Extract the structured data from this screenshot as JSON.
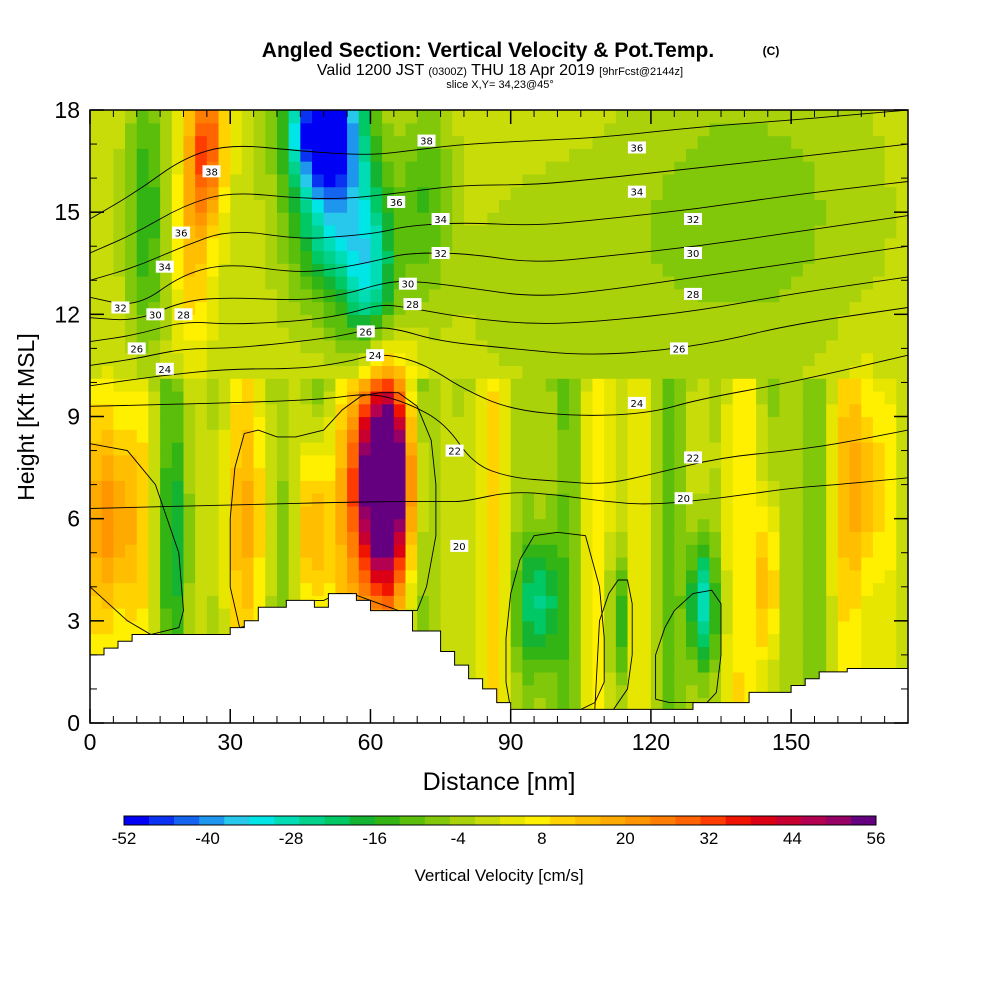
{
  "chart_data": {
    "type": "heatmap",
    "title": "Angled Section: Vertical Velocity & Pot.Temp.",
    "title_suffix": "(C)",
    "subtitle_parts": [
      "Valid 1200 JST",
      "(0300Z)",
      "THU 18 Apr 2019",
      "[9hrFcst@2144z]"
    ],
    "subtitle2": "slice X,Y= 34,23@45°",
    "xlabel": "Distance [nm]",
    "ylabel": "Height [Kft MSL]",
    "xlim": [
      0,
      175
    ],
    "ylim": [
      0,
      18
    ],
    "x_ticks": [
      0,
      30,
      60,
      90,
      120,
      150
    ],
    "y_ticks": [
      0,
      3,
      6,
      9,
      12,
      15,
      18
    ],
    "colorbar": {
      "label": "Vertical Velocity [cm/s]",
      "min": -52,
      "max": 56,
      "step": 4,
      "tick_labels": [
        -52,
        -40,
        -28,
        -16,
        -4,
        8,
        20,
        32,
        44,
        56
      ],
      "colors": [
        "#0000f5",
        "#0a32f2",
        "#1464f0",
        "#1e96ee",
        "#28c8ec",
        "#00e6e6",
        "#00dcb4",
        "#00d28c",
        "#00c864",
        "#14b432",
        "#32b414",
        "#5abe0a",
        "#82c80a",
        "#aad20a",
        "#c8dc0a",
        "#e6e600",
        "#fff000",
        "#ffd200",
        "#ffbe00",
        "#ffaa00",
        "#ff9600",
        "#ff7d00",
        "#ff6400",
        "#ff3c00",
        "#f01400",
        "#dc0014",
        "#c80032",
        "#b40050",
        "#960064",
        "#640080"
      ]
    },
    "field": {
      "description_values": "vertical velocity in cm/s",
      "background": 0,
      "features": [
        {
          "x": 25,
          "y": 17,
          "w": 4,
          "h": 2.2,
          "value": 30
        },
        {
          "x": 22,
          "y": 14,
          "w": 4,
          "h": 3,
          "value": 14
        },
        {
          "x": 12,
          "y": 15,
          "w": 4,
          "h": 4,
          "value": -16
        },
        {
          "x": 50,
          "y": 17.5,
          "w": 7,
          "h": 1.6,
          "value": -48
        },
        {
          "x": 52,
          "y": 15.5,
          "w": 9,
          "h": 3,
          "value": -32
        },
        {
          "x": 60,
          "y": 13,
          "w": 6,
          "h": 2.5,
          "value": -26
        },
        {
          "x": 72,
          "y": 15.5,
          "w": 5,
          "h": 3,
          "value": -12
        },
        {
          "x": 63,
          "y": 7.3,
          "w": 5,
          "h": 2.5,
          "value": 56
        },
        {
          "x": 62,
          "y": 6.5,
          "w": 7,
          "h": 4,
          "value": 32
        },
        {
          "x": 48,
          "y": 5.5,
          "w": 4,
          "h": 3,
          "value": 24
        },
        {
          "x": 5,
          "y": 6,
          "w": 6,
          "h": 3,
          "value": 18
        },
        {
          "x": 35,
          "y": 6,
          "w": 8,
          "h": 3,
          "value": 8
        },
        {
          "x": 18,
          "y": 5.5,
          "w": 3,
          "h": 3,
          "value": -12
        },
        {
          "x": 42,
          "y": 5.5,
          "w": 3,
          "h": 3,
          "value": -12
        },
        {
          "x": 96,
          "y": 3.5,
          "w": 5,
          "h": 2,
          "value": -22
        },
        {
          "x": 113,
          "y": 3,
          "w": 2,
          "h": 2,
          "value": -20
        },
        {
          "x": 131,
          "y": 3.5,
          "w": 3,
          "h": 2,
          "value": -30
        },
        {
          "x": 145,
          "y": 4,
          "w": 2,
          "h": 2.5,
          "value": 22
        },
        {
          "x": 165,
          "y": 7,
          "w": 5,
          "h": 3,
          "value": 14
        },
        {
          "x": 140,
          "y": 15,
          "w": 25,
          "h": 4,
          "value": -8
        },
        {
          "x": 100,
          "y": 13,
          "w": 20,
          "h": 3,
          "value": -4
        }
      ]
    },
    "terrain_polygon": {
      "x": [
        0,
        0,
        3,
        3,
        6,
        6,
        9,
        9,
        12,
        12,
        30,
        30,
        33,
        33,
        36,
        36,
        42,
        42,
        48,
        48,
        51,
        51,
        57,
        57,
        60,
        60,
        69,
        69,
        75,
        75,
        78,
        78,
        81,
        81,
        84,
        84,
        87,
        87,
        90,
        90,
        93,
        93,
        105,
        105,
        108,
        108,
        111,
        111,
        114,
        114,
        117,
        117,
        120,
        120,
        123,
        123,
        126,
        126,
        129,
        129,
        132,
        132,
        135,
        135,
        138,
        138,
        141,
        141,
        144,
        144,
        147,
        147,
        150,
        150,
        153,
        153,
        156,
        156,
        159,
        159,
        162,
        162,
        165,
        165,
        175,
        175
      ],
      "y": [
        0,
        2,
        2,
        2.2,
        2.2,
        2.4,
        2.4,
        2.6,
        2.6,
        2.6,
        2.6,
        2.8,
        2.8,
        3,
        3,
        3.4,
        3.4,
        3.6,
        3.6,
        3.4,
        3.4,
        3.8,
        3.8,
        3.6,
        3.6,
        3.3,
        3.3,
        2.7,
        2.7,
        2.1,
        2.1,
        1.7,
        1.7,
        1.3,
        1.3,
        1.0,
        1.0,
        0.6,
        0.6,
        0.4,
        0.4,
        0.4,
        0.4,
        0.4,
        0.4,
        0.4,
        0.4,
        0.4,
        0.4,
        0.4,
        0.4,
        0.4,
        0.4,
        0.4,
        0.4,
        0.4,
        0.4,
        0.4,
        0.4,
        0.6,
        0.6,
        0.6,
        0.6,
        0.6,
        0.6,
        0.6,
        0.6,
        0.9,
        0.9,
        0.9,
        0.9,
        0.9,
        0.9,
        1.1,
        1.1,
        1.3,
        1.3,
        1.5,
        1.5,
        1.5,
        1.5,
        1.6,
        1.6,
        1.6,
        1.6,
        0
      ]
    },
    "isentropes": [
      {
        "theta": 20,
        "x": [
          0,
          30,
          60,
          76,
          80,
          90,
          100,
          110,
          120,
          135,
          150,
          160,
          175
        ],
        "y": [
          6.3,
          6.4,
          6.5,
          6.5,
          6.5,
          6.8,
          6.7,
          6.5,
          6.4,
          6.6,
          6.9,
          7.0,
          7.2
        ]
      },
      {
        "theta": 22,
        "x": [
          0,
          30,
          50,
          60,
          68,
          76,
          82,
          90,
          100,
          110,
          120,
          135,
          150,
          160,
          175
        ],
        "y": [
          9.3,
          9.4,
          9.5,
          9.7,
          9.4,
          8.8,
          7.6,
          7.2,
          7.1,
          7.0,
          7.3,
          7.8,
          8.0,
          8.2,
          8.6
        ]
      },
      {
        "theta": 24,
        "x": [
          0,
          15,
          30,
          45,
          55,
          60,
          65,
          72,
          80,
          90,
          105,
          120,
          130,
          150,
          175
        ],
        "y": [
          9.9,
          10.2,
          10.4,
          10.4,
          10.6,
          10.8,
          10.8,
          10.5,
          9.8,
          9.2,
          9.0,
          9.1,
          9.5,
          10.0,
          10.8
        ]
      },
      {
        "theta": 26,
        "x": [
          0,
          10,
          20,
          30,
          45,
          55,
          60,
          65,
          75,
          90,
          105,
          120,
          135,
          150,
          175
        ],
        "y": [
          10.5,
          10.7,
          11.0,
          11.0,
          11.2,
          11.4,
          11.6,
          11.6,
          11.2,
          11.0,
          10.8,
          10.9,
          11.2,
          11.7,
          12.2
        ]
      },
      {
        "theta": 28,
        "x": [
          0,
          10,
          20,
          30,
          45,
          55,
          62,
          68,
          80,
          95,
          110,
          130,
          150,
          175
        ],
        "y": [
          11.2,
          11.4,
          11.8,
          11.7,
          11.8,
          12.0,
          12.3,
          12.2,
          11.9,
          11.7,
          11.8,
          12.1,
          12.6,
          13.1
        ]
      },
      {
        "theta": 30,
        "x": [
          0,
          10,
          20,
          30,
          45,
          55,
          62,
          68,
          80,
          95,
          110,
          130,
          150,
          175
        ],
        "y": [
          11.9,
          11.8,
          12.4,
          12.5,
          12.4,
          12.6,
          12.9,
          13.0,
          12.8,
          12.5,
          12.7,
          13.1,
          13.5,
          14.0
        ]
      },
      {
        "theta": 32,
        "x": [
          0,
          10,
          20,
          30,
          45,
          55,
          62,
          68,
          80,
          95,
          110,
          130,
          150,
          175
        ],
        "y": [
          12.5,
          12.2,
          13.2,
          13.5,
          13.2,
          13.4,
          13.6,
          13.8,
          13.8,
          13.5,
          13.7,
          14.0,
          14.4,
          14.9
        ]
      },
      {
        "theta": 34,
        "x": [
          0,
          10,
          20,
          30,
          45,
          55,
          62,
          68,
          80,
          95,
          110,
          130,
          150,
          175
        ],
        "y": [
          13.0,
          13.4,
          14.0,
          14.5,
          14.2,
          14.3,
          14.4,
          14.6,
          14.7,
          14.6,
          14.8,
          15.1,
          15.5,
          15.9
        ]
      },
      {
        "theta": 36,
        "x": [
          0,
          10,
          20,
          30,
          45,
          55,
          62,
          68,
          80,
          95,
          110,
          130,
          150,
          175
        ],
        "y": [
          13.8,
          14.4,
          15.2,
          15.6,
          15.4,
          15.4,
          15.5,
          15.6,
          15.8,
          15.8,
          16.0,
          16.3,
          16.6,
          17.0
        ]
      },
      {
        "theta": 38,
        "x": [
          0,
          10,
          20,
          30,
          45,
          55,
          62,
          68,
          80,
          95,
          110,
          130,
          150,
          175
        ],
        "y": [
          14.8,
          15.6,
          16.6,
          17.0,
          16.8,
          16.7,
          16.7,
          16.8,
          17.0,
          17.1,
          17.2,
          17.5,
          17.7,
          18.0
        ]
      }
    ],
    "contour_labels": [
      {
        "text": "38",
        "x": 26,
        "y": 16.2
      },
      {
        "text": "36",
        "x": 19.5,
        "y": 14.4
      },
      {
        "text": "34",
        "x": 16,
        "y": 13.4
      },
      {
        "text": "32",
        "x": 6.5,
        "y": 12.2
      },
      {
        "text": "30",
        "x": 14,
        "y": 12.0
      },
      {
        "text": "28",
        "x": 20,
        "y": 12.0
      },
      {
        "text": "26",
        "x": 10,
        "y": 11.0
      },
      {
        "text": "24",
        "x": 16,
        "y": 10.4
      },
      {
        "text": "38",
        "x": 72,
        "y": 17.1
      },
      {
        "text": "36",
        "x": 65.5,
        "y": 15.3
      },
      {
        "text": "34",
        "x": 75,
        "y": 14.8
      },
      {
        "text": "32",
        "x": 75,
        "y": 13.8
      },
      {
        "text": "30",
        "x": 68,
        "y": 12.9
      },
      {
        "text": "28",
        "x": 69,
        "y": 12.3
      },
      {
        "text": "26",
        "x": 59,
        "y": 11.5
      },
      {
        "text": "24",
        "x": 61,
        "y": 10.8
      },
      {
        "text": "22",
        "x": 78,
        "y": 8.0
      },
      {
        "text": "20",
        "x": 79,
        "y": 5.2
      },
      {
        "text": "36",
        "x": 117,
        "y": 16.9
      },
      {
        "text": "34",
        "x": 117,
        "y": 15.6
      },
      {
        "text": "32",
        "x": 129,
        "y": 14.8
      },
      {
        "text": "30",
        "x": 129,
        "y": 13.8
      },
      {
        "text": "28",
        "x": 129,
        "y": 12.6
      },
      {
        "text": "26",
        "x": 126,
        "y": 11.0
      },
      {
        "text": "24",
        "x": 117,
        "y": 9.4
      },
      {
        "text": "22",
        "x": 129,
        "y": 7.8
      },
      {
        "text": "20",
        "x": 127,
        "y": 6.6
      }
    ],
    "closed_contours": [
      {
        "x": [
          0,
          8,
          14,
          19,
          20,
          19,
          13,
          8,
          0
        ],
        "y": [
          8.2,
          8.0,
          7.0,
          5.0,
          3.3,
          2.8,
          2.6,
          3.0,
          4.0
        ],
        "note": ""
      },
      {
        "x": [
          32,
          38,
          42,
          43,
          46,
          50,
          53,
          56,
          60,
          66,
          70,
          72,
          74,
          74,
          73,
          70,
          66,
          62,
          58,
          54,
          50,
          44,
          40,
          36,
          33,
          31,
          30,
          30,
          32
        ],
        "y": [
          2.8,
          3.0,
          3.4,
          3.6,
          3.6,
          3.6,
          3.8,
          3.8,
          3.6,
          3.3,
          3.3,
          4.0,
          5.5,
          7.0,
          8.3,
          9.3,
          9.7,
          9.7,
          9.6,
          9.2,
          8.6,
          8.4,
          8.4,
          8.6,
          8.5,
          7.5,
          6.0,
          4.0,
          2.8
        ]
      },
      {
        "x": [
          90,
          94,
          100,
          105,
          108,
          110,
          110,
          109,
          106,
          100,
          95,
          92,
          90,
          89,
          89,
          90
        ],
        "y": [
          0.4,
          0.4,
          0.4,
          0.4,
          0.6,
          1.2,
          2.5,
          4.0,
          5.5,
          5.6,
          5.5,
          4.8,
          3.8,
          2.5,
          1.2,
          0.4
        ]
      },
      {
        "x": [
          108,
          112,
          115,
          116,
          116,
          115,
          113,
          111,
          109,
          108
        ],
        "y": [
          0.4,
          0.4,
          1.0,
          2.0,
          3.5,
          4.2,
          4.2,
          3.8,
          3.0,
          0.4
        ]
      },
      {
        "x": [
          121,
          124,
          128,
          132,
          134,
          135,
          135,
          133,
          129,
          125,
          123,
          121,
          121
        ],
        "y": [
          0.7,
          0.6,
          0.6,
          0.6,
          0.9,
          2.0,
          3.5,
          3.9,
          3.8,
          3.3,
          2.8,
          2.0,
          0.7
        ]
      }
    ]
  }
}
